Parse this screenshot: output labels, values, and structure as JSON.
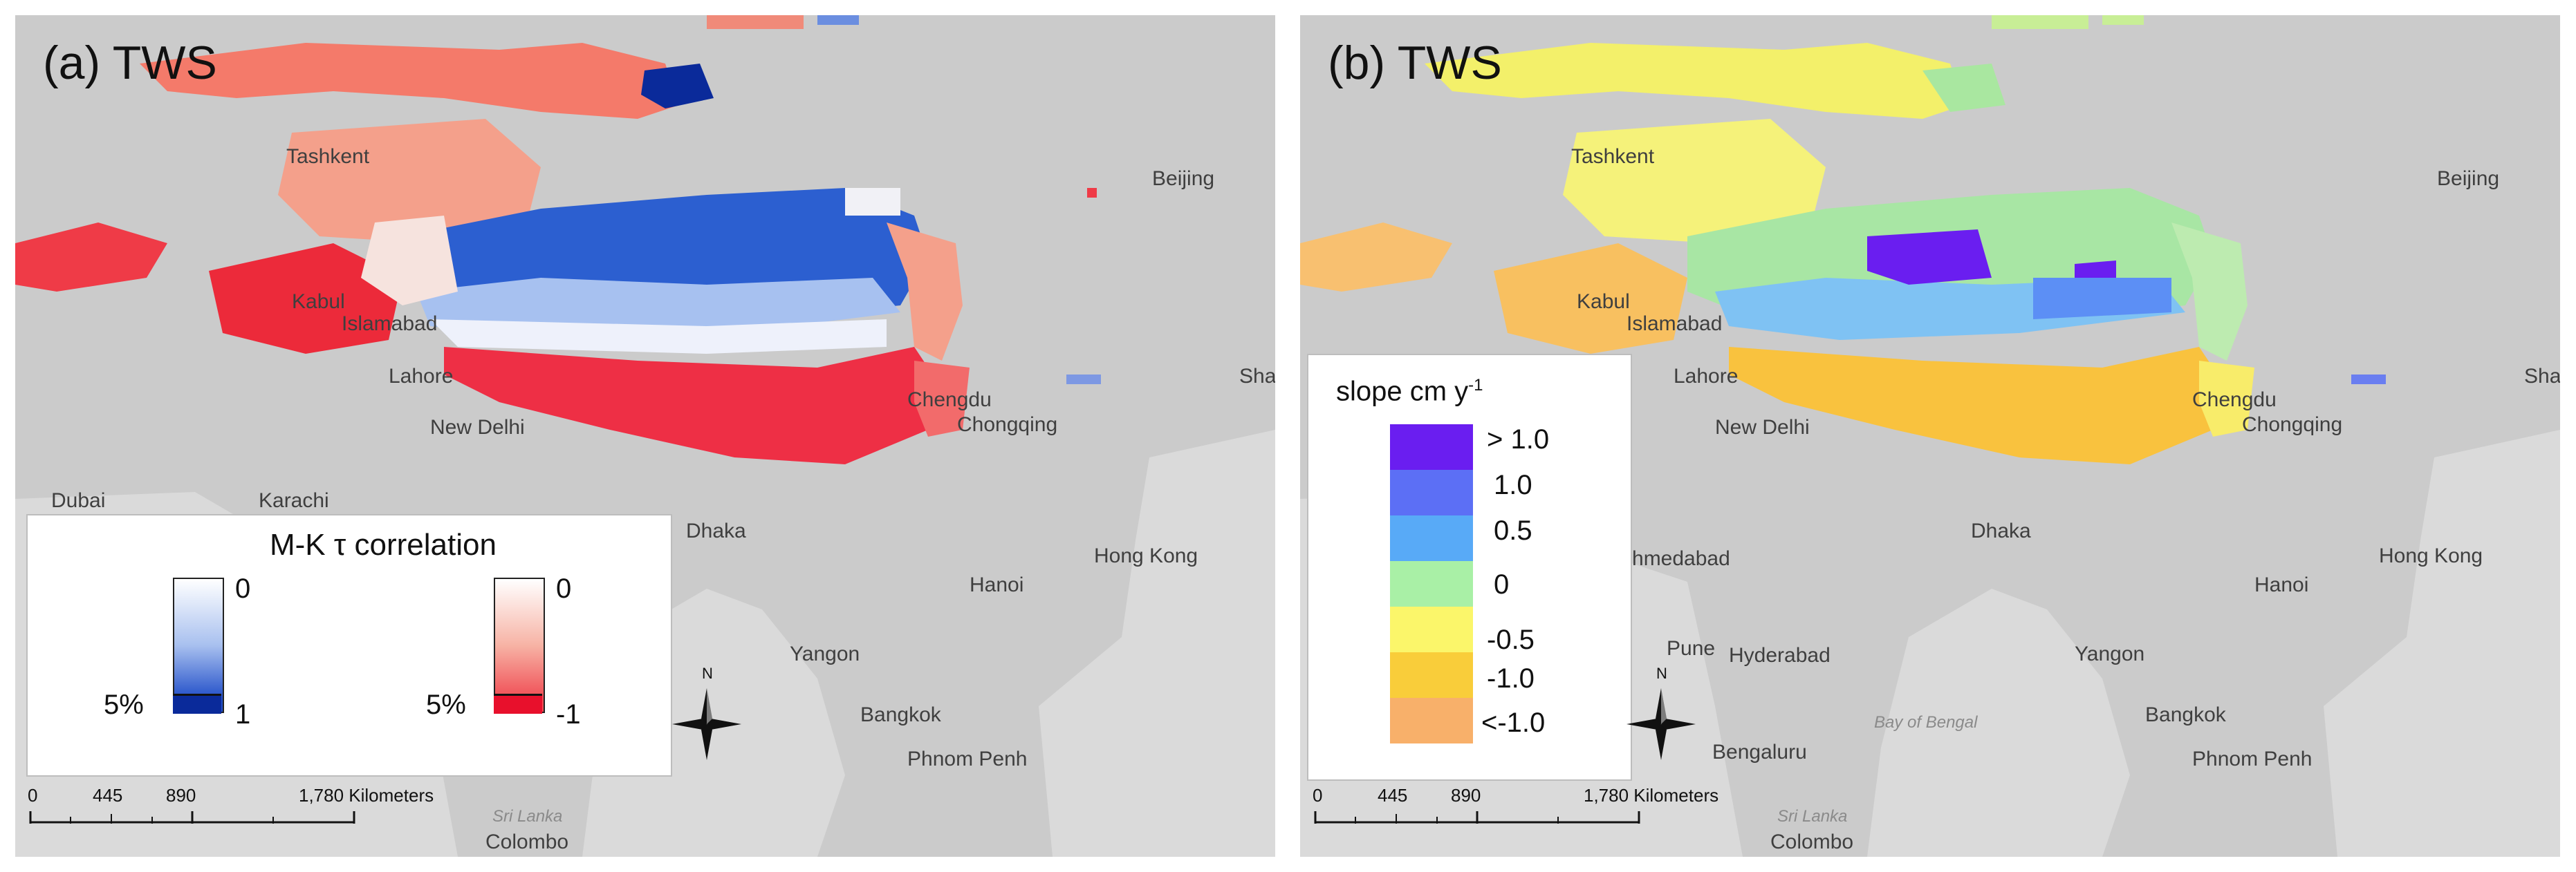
{
  "panels": [
    {
      "label": "(a) TWS",
      "legend": {
        "title": "M-K τ correlation",
        "blue_bar": {
          "top_label": "0",
          "bottom_label": "1",
          "sig_label": "5%"
        },
        "red_bar": {
          "top_label": "0",
          "bottom_label": "-1",
          "sig_label": "5%"
        }
      },
      "scale": {
        "ticks": [
          "0",
          "445",
          "890",
          "1,780 Kilometers"
        ]
      },
      "cities": [
        "Tashkent",
        "Beijing",
        "Kabul",
        "Islamabad",
        "Lahore",
        "New Delhi",
        "Chengdu",
        "Chongqing",
        "Shanghai",
        "Dubai",
        "Karachi",
        "Dhaka",
        "Hong Kong",
        "Hanoi",
        "Yangon",
        "Bangkok",
        "Phnom Penh",
        "Colombo",
        "Sri Lanka"
      ],
      "north_label": "N"
    },
    {
      "label": "(b) TWS",
      "legend": {
        "title": "slope cm y",
        "title_sup": "-1",
        "classes": [
          {
            "label": "> 1.0",
            "color": "#6a1ef0"
          },
          {
            "label": "1.0",
            "color": "#5c6ff5"
          },
          {
            "label": "0.5",
            "color": "#58aaf7"
          },
          {
            "label": "0",
            "color": "#a9f0a6"
          },
          {
            "label": "-0.5",
            "color": "#fbf66a"
          },
          {
            "label": "-1.0",
            "color": "#f9cd3a"
          },
          {
            "label": "<-1.0",
            "color": "#f8b06a"
          }
        ]
      },
      "scale": {
        "ticks": [
          "0",
          "445",
          "890",
          "1,780 Kilometers"
        ]
      },
      "cities": [
        "Tashkent",
        "Beijing",
        "Kabul",
        "Islamabad",
        "Lahore",
        "New Delhi",
        "Chengdu",
        "Chongqing",
        "Shanghai",
        "Ahmedabad",
        "Pune",
        "Hyderabad",
        "Bengaluru",
        "Dhaka",
        "Hong Kong",
        "Hanoi",
        "Yangon",
        "Bangkok",
        "Phnom Penh",
        "Colombo",
        "Sri Lanka"
      ],
      "sea_labels": [
        "Bay of Bengal"
      ],
      "north_label": "N"
    }
  ],
  "colors": {
    "land": "#c9c9c9",
    "sea": "#d9d9d9",
    "blue_ramp": [
      "#ffffff",
      "#9fb9ee",
      "#2f63d4",
      "#0a2a9a"
    ],
    "red_ramp": [
      "#ffffff",
      "#f8b4a6",
      "#f5604f",
      "#e8102c"
    ]
  }
}
